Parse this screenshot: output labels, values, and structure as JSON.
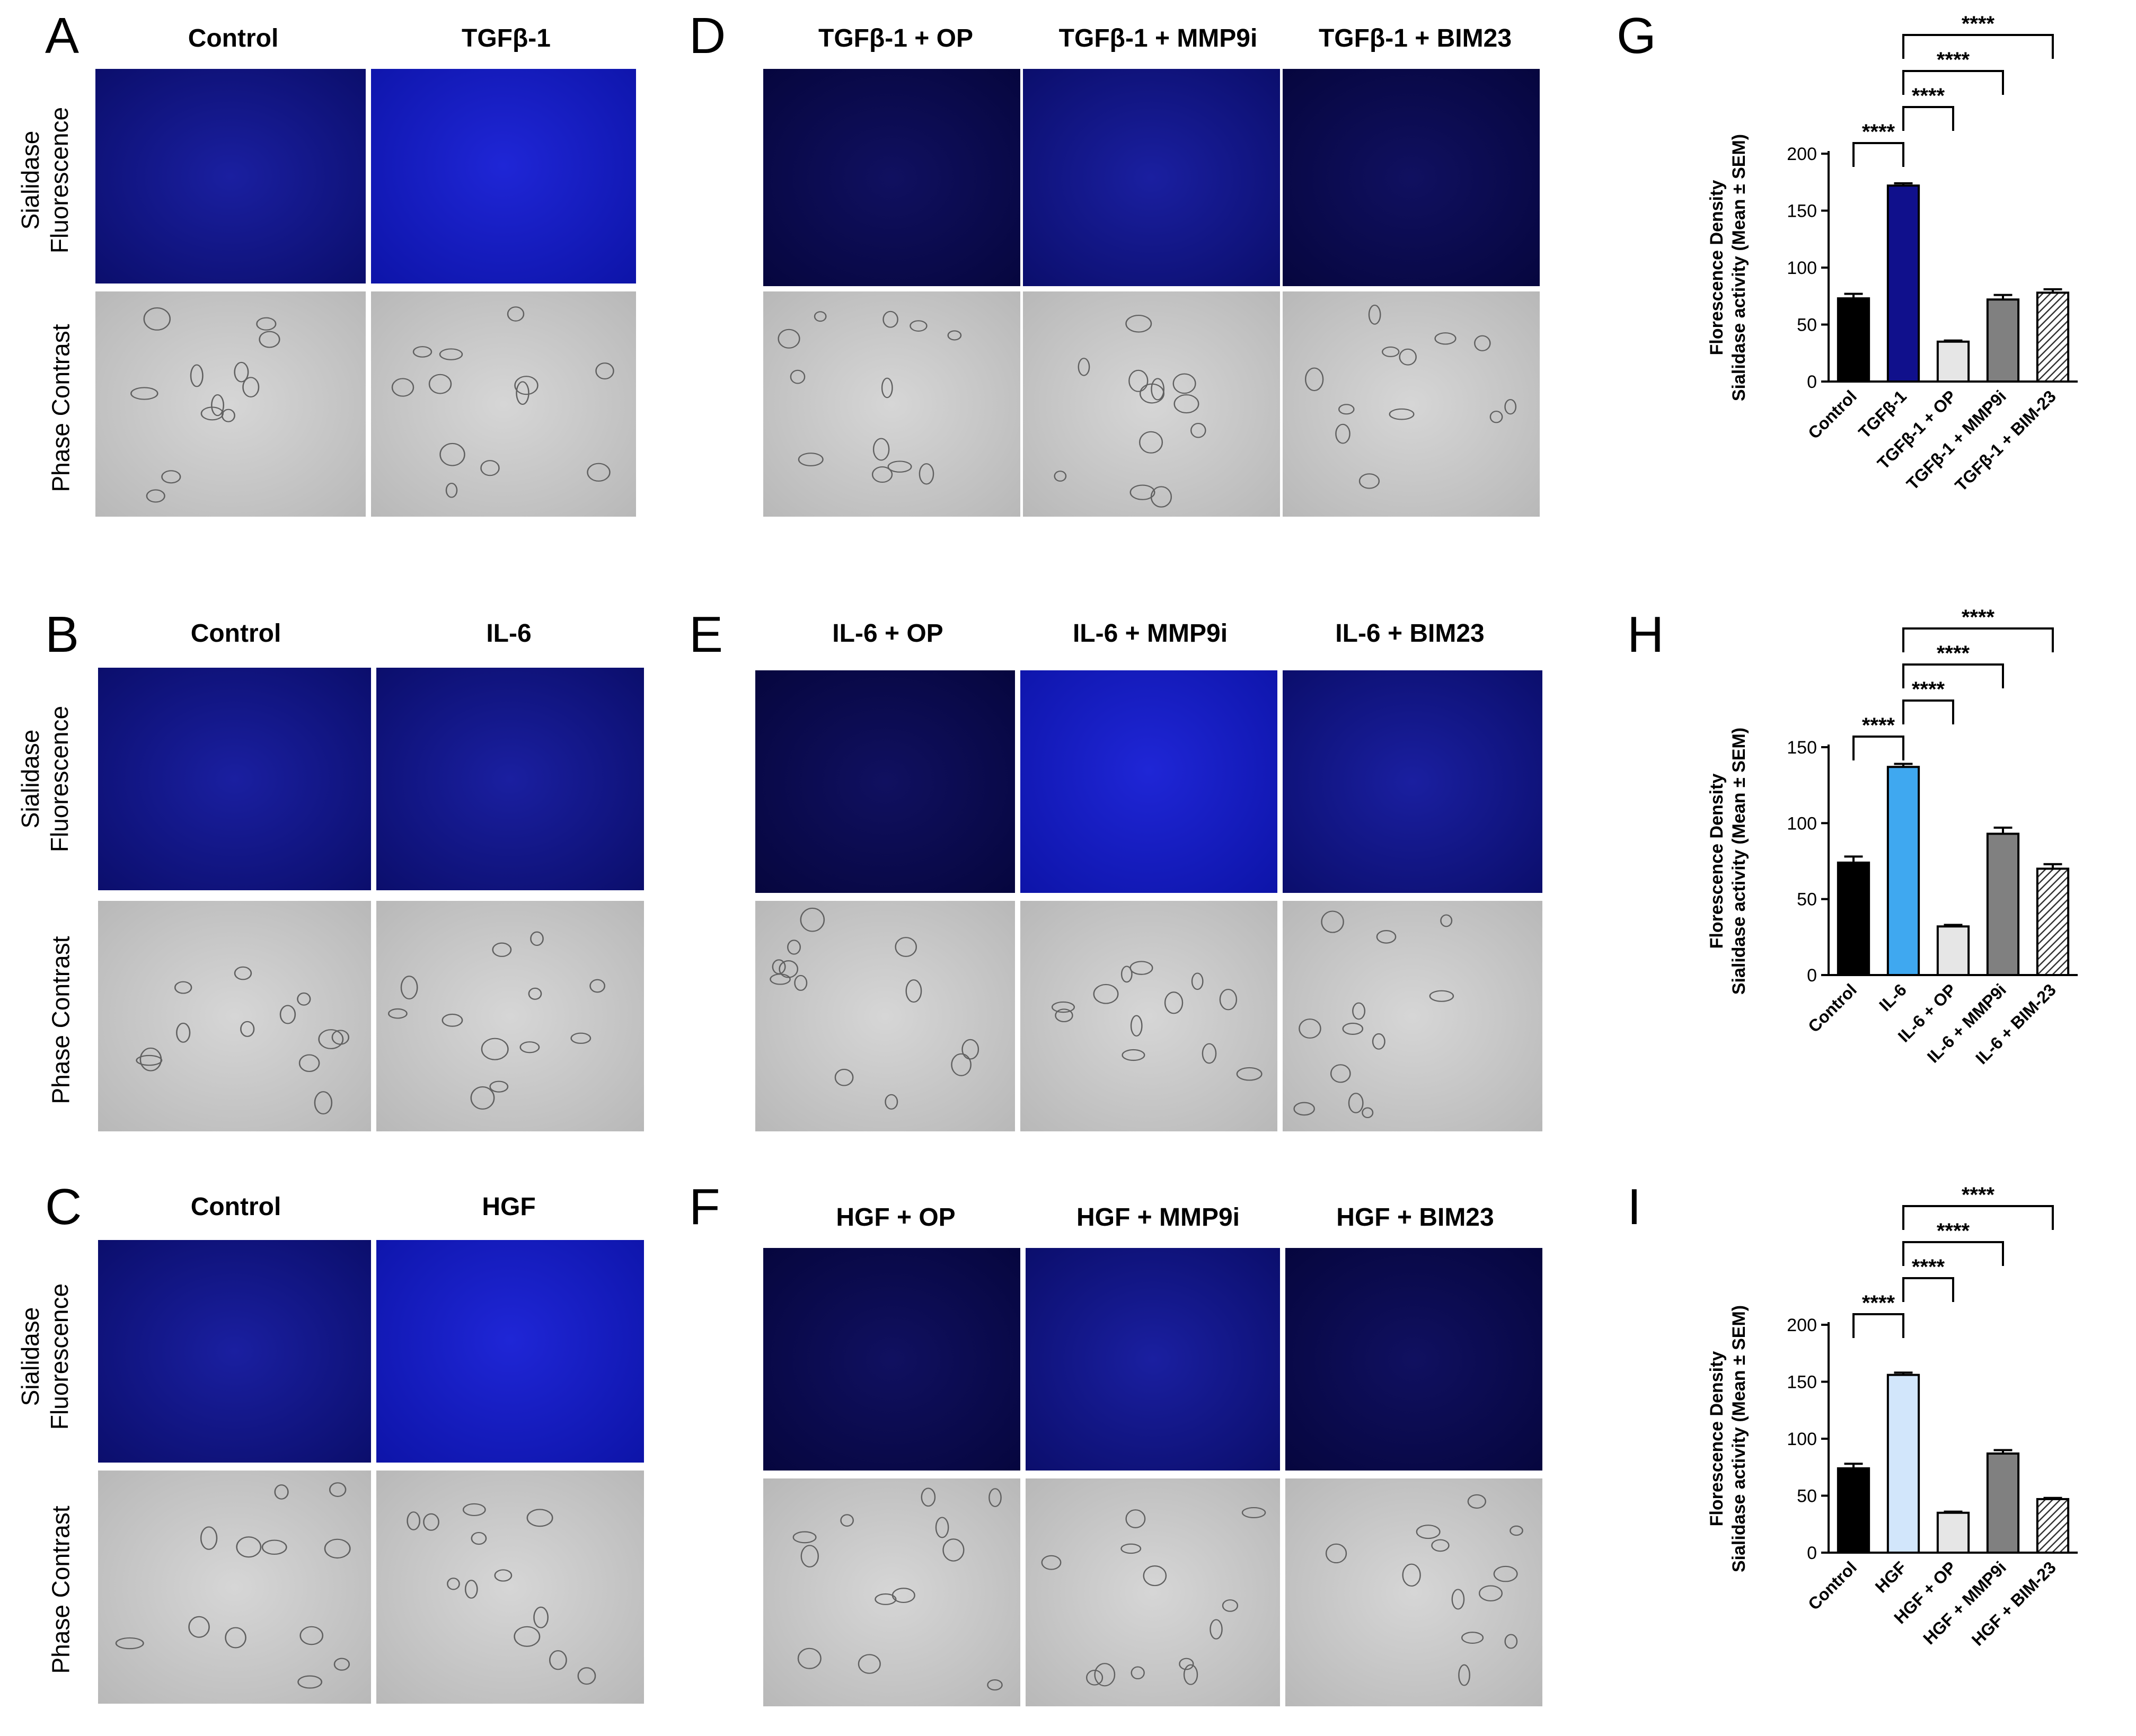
{
  "panel_letters": [
    "A",
    "B",
    "C",
    "D",
    "E",
    "F",
    "G",
    "H",
    "I"
  ],
  "row_labels": {
    "fluorescence": [
      "Sialidase",
      "Fluorescence"
    ],
    "phase": "Phase Contrast"
  },
  "rows": [
    {
      "left_titles": [
        "Control",
        "TGFβ-1"
      ],
      "right_titles": [
        "TGFβ-1 + OP",
        "TGFβ-1 + MMP9i",
        "TGFβ-1 + BIM23"
      ]
    },
    {
      "left_titles": [
        "Control",
        "IL-6"
      ],
      "right_titles": [
        "IL-6 + OP",
        "IL-6 + MMP9i",
        "IL-6 + BIM23"
      ]
    },
    {
      "left_titles": [
        "Control",
        "HGF"
      ],
      "right_titles": [
        "HGF + OP",
        "HGF + MMP9i",
        "HGF + BIM23"
      ]
    }
  ],
  "chart_data": [
    {
      "type": "bar",
      "ylabel_lines": [
        "Florescence Density",
        "Sialidase activity (Mean ± SEM)"
      ],
      "categories": [
        "Control",
        "TGFβ-1",
        "TGFβ-1 + OP",
        "TGFβ-1 + MMP9i",
        "TGFβ-1 + BIM-23"
      ],
      "values": [
        73,
        172,
        35,
        72,
        78
      ],
      "errors": [
        4,
        2,
        1,
        4,
        3
      ],
      "colors": [
        "#000000",
        "#10108c",
        "#e6e6e6",
        "#808080",
        "hatch"
      ],
      "ylim": [
        0,
        200
      ],
      "yticks": [
        0,
        50,
        100,
        150,
        200
      ],
      "significance": "****"
    },
    {
      "type": "bar",
      "ylabel_lines": [
        "Florescence Density",
        "Sialidase activity (Mean ± SEM)"
      ],
      "categories": [
        "Control",
        "IL-6",
        "IL-6 + OP",
        "IL-6 + MMP9i",
        "IL-6 + BIM-23"
      ],
      "values": [
        74,
        137,
        32,
        93,
        70
      ],
      "errors": [
        4,
        2,
        1,
        4,
        3
      ],
      "colors": [
        "#000000",
        "#3fa8f0",
        "#e6e6e6",
        "#808080",
        "hatch"
      ],
      "ylim": [
        0,
        150
      ],
      "yticks": [
        0,
        50,
        100,
        150
      ],
      "significance": "****"
    },
    {
      "type": "bar",
      "ylabel_lines": [
        "Florescence Density",
        "Sialidase activity (Mean ± SEM)"
      ],
      "categories": [
        "Control",
        "HGF",
        "HGF + OP",
        "HGF + MMP9i",
        "HGF + BIM-23"
      ],
      "values": [
        74,
        156,
        35,
        87,
        47
      ],
      "errors": [
        4,
        2,
        1,
        3,
        1
      ],
      "colors": [
        "#000000",
        "#d2e6fb",
        "#e6e6e6",
        "#808080",
        "hatch"
      ],
      "ylim": [
        0,
        200
      ],
      "yticks": [
        0,
        50,
        100,
        150,
        200
      ],
      "significance": "****"
    }
  ]
}
